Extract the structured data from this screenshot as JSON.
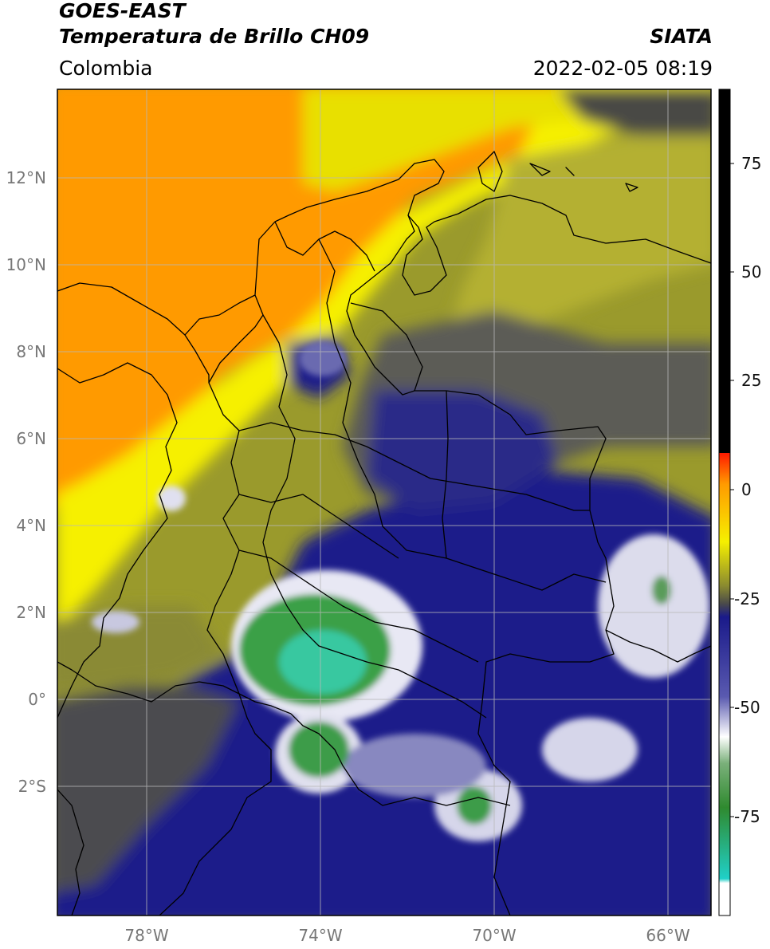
{
  "header": {
    "satellite": "GOES-EAST",
    "product": "Temperatura de Brillo CH09",
    "org": "SIATA",
    "region": "Colombia",
    "datetime": "2022-02-05 08:19"
  },
  "map": {
    "lat_labels": [
      "12°N",
      "10°N",
      "8°N",
      "6°N",
      "4°N",
      "2°N",
      "0°",
      "2°S"
    ],
    "lon_labels": [
      "78°W",
      "74°W",
      "70°W",
      "66°W"
    ],
    "palette": {
      "orange": "#ff9a00",
      "yellow": "#f6f000",
      "olive": "#9a9a2c",
      "grey": "#5c5c56",
      "navy": "#1c1e8a",
      "white": "#f2f2f2",
      "green": "#3aa046",
      "teal": "#3ac8a0"
    }
  },
  "colorbar": {
    "tick_labels": [
      "75",
      "50",
      "25",
      "0",
      "-25",
      "-50",
      "-75"
    ],
    "stops": [
      {
        "value": 10,
        "color": "#ff1a00"
      },
      {
        "value": -5,
        "color": "#ff9a00"
      },
      {
        "value": -15,
        "color": "#f6f000"
      },
      {
        "value": -22,
        "color": "#8a8a30"
      },
      {
        "value": -25,
        "color": "#4a4a4a"
      },
      {
        "value": -27,
        "color": "#1a1a8a"
      },
      {
        "value": -40,
        "color": "#5a5ab0"
      },
      {
        "value": -50,
        "color": "#ffffff"
      },
      {
        "value": -55,
        "color": "#7ab07a"
      },
      {
        "value": -65,
        "color": "#2f8a2f"
      },
      {
        "value": -85,
        "color": "#20d0c8"
      },
      {
        "value": -90,
        "color": "#ffffff"
      }
    ],
    "above_color": "#000000"
  }
}
